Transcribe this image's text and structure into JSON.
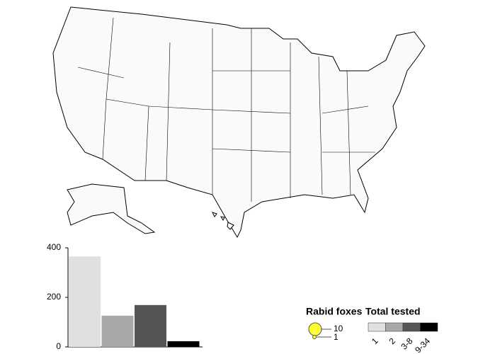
{
  "chart_data": {
    "type": "bar",
    "categories": [
      null,
      null,
      null,
      null
    ],
    "values": [
      365,
      126,
      169,
      23
    ],
    "colors": [
      "#e0e0e0",
      "#a8a8a8",
      "#555555",
      "#000000"
    ],
    "ylim": [
      0,
      400
    ],
    "yticks": [
      0,
      200,
      400
    ]
  },
  "legend": {
    "size_title": "Rabid foxes",
    "sizes": [
      10,
      1
    ],
    "class_title": "Total tested",
    "classes": [
      "1",
      "2",
      "3-8",
      "9-34"
    ]
  }
}
